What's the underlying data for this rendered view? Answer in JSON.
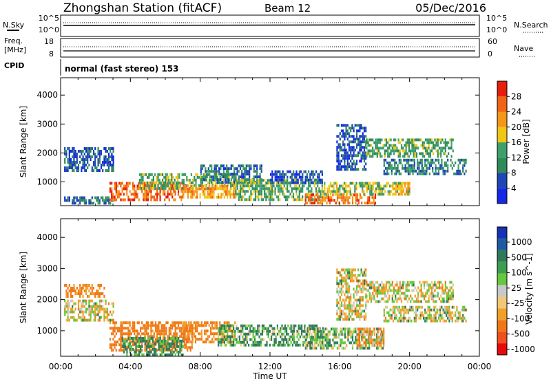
{
  "header": {
    "title": "Zhongshan Station (fitACF)",
    "beam": "Beam 12",
    "date": "05/Dec/2016"
  },
  "panels": {
    "nsky": {
      "left_label": "N.Sky",
      "left_ticks": [
        "10^5",
        "10^0"
      ],
      "right_ticks": [
        "10^5",
        "10^0"
      ],
      "right_label": "N.Search"
    },
    "freq": {
      "left_label_1": "Freq.",
      "left_label_2": "[MHz]",
      "left_ticks": [
        "18",
        "8"
      ],
      "right_ticks": [
        "60",
        "0"
      ],
      "right_label": "Nave"
    },
    "cpid": {
      "label": "CPID",
      "value": "normal (fast stereo) 153"
    }
  },
  "colors": {
    "power_scale": [
      "#1428e6",
      "#1e46b4",
      "#2f8a5a",
      "#3da06b",
      "#f0c814",
      "#f59618",
      "#f06414",
      "#e61e0a"
    ],
    "velocity_scale": [
      "#e60a0a",
      "#f0501e",
      "#f07814",
      "#f0a028",
      "#f0c878",
      "#c8c8c8",
      "#64c83c",
      "#3c9e50",
      "#2e7a5a",
      "#1e5aa0",
      "#1432b4"
    ]
  },
  "chart_data": [
    {
      "type": "heatmap",
      "title": "Power",
      "xlabel": "Time UT",
      "ylabel": "Slant Range [km]",
      "x_ticks": [
        "00:00",
        "04:00",
        "08:00",
        "12:00",
        "16:00",
        "20:00",
        "00:00"
      ],
      "y_ticks": [
        "1000",
        "2000",
        "3000",
        "4000"
      ],
      "ylim": [
        180,
        4600
      ],
      "colorbar": {
        "label": "Power [dB]",
        "ticks": [
          "4",
          "8",
          "12",
          "16",
          "20",
          "24",
          "28"
        ],
        "range": [
          0,
          32
        ]
      },
      "regions": [
        {
          "t": [
            0.2,
            3.0
          ],
          "r": [
            1350,
            2200
          ],
          "level": 6
        },
        {
          "t": [
            0.2,
            3.0
          ],
          "r": [
            250,
            500
          ],
          "level": 8
        },
        {
          "t": [
            2.8,
            7.0
          ],
          "r": [
            350,
            1000
          ],
          "level": 26
        },
        {
          "t": [
            4.5,
            10.0
          ],
          "r": [
            800,
            1300
          ],
          "level": 14
        },
        {
          "t": [
            7.0,
            10.0
          ],
          "r": [
            500,
            900
          ],
          "level": 22
        },
        {
          "t": [
            8.0,
            11.5
          ],
          "r": [
            1000,
            1600
          ],
          "level": 8
        },
        {
          "t": [
            10.0,
            15.0
          ],
          "r": [
            400,
            1100
          ],
          "level": 14
        },
        {
          "t": [
            12.0,
            15.0
          ],
          "r": [
            1000,
            1400
          ],
          "level": 6
        },
        {
          "t": [
            14.0,
            18.0
          ],
          "r": [
            300,
            600
          ],
          "level": 25
        },
        {
          "t": [
            15.0,
            19.5
          ],
          "r": [
            550,
            1000
          ],
          "level": 16
        },
        {
          "t": [
            15.8,
            17.5
          ],
          "r": [
            1400,
            3000
          ],
          "level": 6
        },
        {
          "t": [
            17.5,
            22.5
          ],
          "r": [
            1900,
            2500
          ],
          "level": 13
        },
        {
          "t": [
            18.5,
            23.2
          ],
          "r": [
            1300,
            1800
          ],
          "level": 10
        },
        {
          "t": [
            19.0,
            20.0
          ],
          "r": [
            600,
            1000
          ],
          "level": 20
        }
      ]
    },
    {
      "type": "heatmap",
      "title": "Velocity",
      "xlabel": "Time UT",
      "ylabel": "Slant Range [km]",
      "x_ticks": [
        "00:00",
        "04:00",
        "08:00",
        "12:00",
        "16:00",
        "20:00",
        "00:00"
      ],
      "y_ticks": [
        "1000",
        "2000",
        "3000",
        "4000"
      ],
      "ylim": [
        180,
        4600
      ],
      "colorbar": {
        "label": "Velocity [m s^-1]",
        "ticks": [
          "1000",
          "500",
          "100",
          "25",
          "-25",
          "-100",
          "-500",
          "-1000"
        ]
      },
      "regions": [
        {
          "t": [
            0.2,
            3.0
          ],
          "r": [
            1350,
            2000
          ],
          "value": 0
        },
        {
          "t": [
            0.2,
            2.5
          ],
          "r": [
            2100,
            2500
          ],
          "value": -150
        },
        {
          "t": [
            2.8,
            7.5
          ],
          "r": [
            400,
            1300
          ],
          "value": -200
        },
        {
          "t": [
            3.5,
            7.0
          ],
          "r": [
            200,
            800
          ],
          "value": 150
        },
        {
          "t": [
            7.0,
            10.0
          ],
          "r": [
            600,
            1300
          ],
          "value": -150
        },
        {
          "t": [
            9.0,
            15.0
          ],
          "r": [
            500,
            1200
          ],
          "value": 120
        },
        {
          "t": [
            14.0,
            18.5
          ],
          "r": [
            400,
            1100
          ],
          "value": 80
        },
        {
          "t": [
            15.8,
            17.5
          ],
          "r": [
            1400,
            3000
          ],
          "value": 0
        },
        {
          "t": [
            17.5,
            22.5
          ],
          "r": [
            1900,
            2600
          ],
          "value": 0
        },
        {
          "t": [
            18.5,
            23.2
          ],
          "r": [
            1350,
            1800
          ],
          "value": 10
        },
        {
          "t": [
            17.0,
            18.5
          ],
          "r": [
            500,
            1100
          ],
          "value": -120
        }
      ]
    }
  ]
}
